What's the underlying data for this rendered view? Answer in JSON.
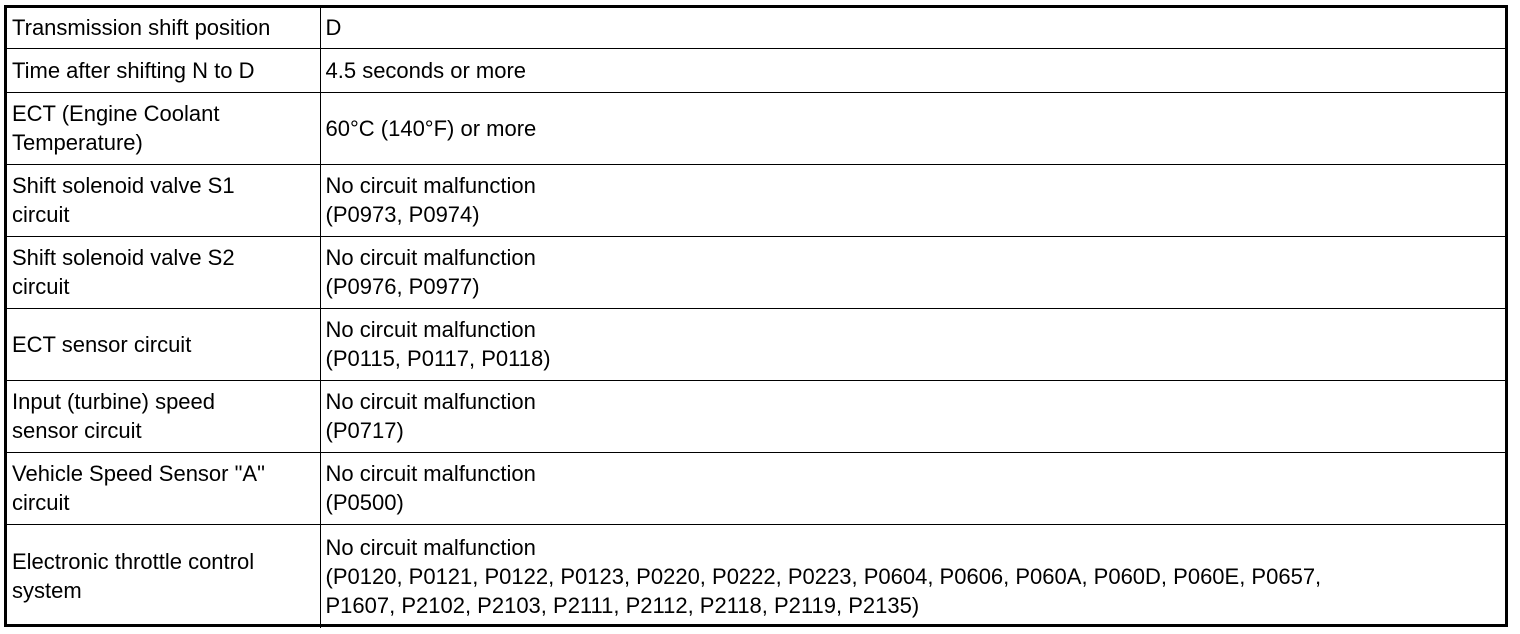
{
  "rows": [
    {
      "label": "Transmission shift position",
      "value": "D"
    },
    {
      "label": "Time after shifting N to D",
      "value": "4.5 seconds or more"
    },
    {
      "label": "ECT (Engine Coolant\nTemperature)",
      "value": "60°C (140°F) or more"
    },
    {
      "label": "Shift solenoid valve S1\ncircuit",
      "value": "No circuit malfunction\n(P0973, P0974)"
    },
    {
      "label": "Shift solenoid valve S2\ncircuit",
      "value": "No circuit malfunction\n(P0976, P0977)"
    },
    {
      "label": "ECT sensor circuit",
      "value": "No circuit malfunction\n(P0115, P0117, P0118)"
    },
    {
      "label": "Input (turbine) speed\nsensor circuit",
      "value": "No circuit malfunction\n(P0717)"
    },
    {
      "label": "Vehicle Speed Sensor \"A\"\ncircuit",
      "value": "No circuit malfunction\n(P0500)"
    },
    {
      "label": "Electronic throttle control\nsystem",
      "value": "No circuit malfunction\n(P0120, P0121, P0122, P0123, P0220, P0222, P0223, P0604, P0606, P060A, P060D, P060E, P0657,\nP1607, P2102, P2103, P2111, P2112, P2118, P2119, P2135)"
    }
  ]
}
